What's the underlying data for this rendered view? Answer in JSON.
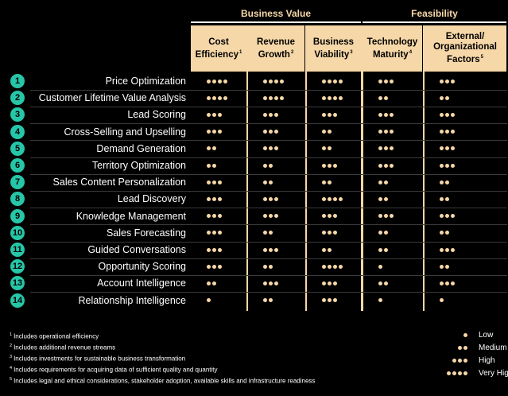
{
  "chart_data": {
    "type": "table",
    "groups": [
      {
        "name": "Business Value",
        "columns": 3
      },
      {
        "name": "Feasibility",
        "columns": 2
      }
    ],
    "columns": [
      {
        "label": "Cost Efficiency",
        "footnote": "1"
      },
      {
        "label": "Revenue Growth",
        "footnote": "2"
      },
      {
        "label": "Business Viability",
        "footnote": "3"
      },
      {
        "label": "Technology Maturity",
        "footnote": "4"
      },
      {
        "label": "External/ Organizational Factors",
        "footnote": "5"
      }
    ],
    "rows": [
      {
        "num": "1",
        "label": "Price Optimization",
        "values": [
          4,
          4,
          4,
          3,
          3
        ]
      },
      {
        "num": "2",
        "label": "Customer Lifetime Value Analysis",
        "values": [
          4,
          4,
          4,
          2,
          2
        ]
      },
      {
        "num": "3",
        "label": "Lead Scoring",
        "values": [
          3,
          3,
          3,
          3,
          3
        ]
      },
      {
        "num": "4",
        "label": "Cross-Selling and Upselling",
        "values": [
          3,
          3,
          2,
          3,
          3
        ]
      },
      {
        "num": "5",
        "label": "Demand Generation",
        "values": [
          2,
          3,
          2,
          3,
          3
        ]
      },
      {
        "num": "6",
        "label": "Territory Optimization",
        "values": [
          2,
          2,
          3,
          3,
          3
        ]
      },
      {
        "num": "7",
        "label": "Sales Content Personalization",
        "values": [
          3,
          2,
          2,
          2,
          2
        ]
      },
      {
        "num": "8",
        "label": "Lead Discovery",
        "values": [
          3,
          3,
          4,
          2,
          2
        ]
      },
      {
        "num": "9",
        "label": "Knowledge Management",
        "values": [
          3,
          3,
          3,
          3,
          3
        ]
      },
      {
        "num": "10",
        "label": "Sales Forecasting",
        "values": [
          3,
          2,
          3,
          2,
          2
        ]
      },
      {
        "num": "11",
        "label": "Guided Conversations",
        "values": [
          3,
          3,
          2,
          2,
          3
        ]
      },
      {
        "num": "12",
        "label": "Opportunity Scoring",
        "values": [
          3,
          2,
          4,
          1,
          2
        ]
      },
      {
        "num": "13",
        "label": "Account Intelligence",
        "values": [
          2,
          3,
          3,
          2,
          3
        ]
      },
      {
        "num": "14",
        "label": "Relationship Intelligence",
        "values": [
          1,
          2,
          3,
          1,
          1
        ]
      }
    ],
    "legend": [
      {
        "dots": 1,
        "label": "Low"
      },
      {
        "dots": 2,
        "label": "Medium"
      },
      {
        "dots": 3,
        "label": "High"
      },
      {
        "dots": 4,
        "label": "Very High"
      }
    ]
  },
  "footnotes": [
    {
      "mark": "1",
      "text": "Includes operational efficiency"
    },
    {
      "mark": "2",
      "text": "Includes additional revenue streams"
    },
    {
      "mark": "3",
      "text": "Includes investments for sustainable business transformation"
    },
    {
      "mark": "4",
      "text": "Includes requirements for acquiring data of sufficient quality and quantity"
    },
    {
      "mark": "5",
      "text": "Includes legal and ethical considerations, stakeholder adoption, available skills and infrastructure readiness"
    }
  ],
  "colors": {
    "accent": "#f6d7a7",
    "badge": "#26c6a8",
    "background": "#000000"
  }
}
